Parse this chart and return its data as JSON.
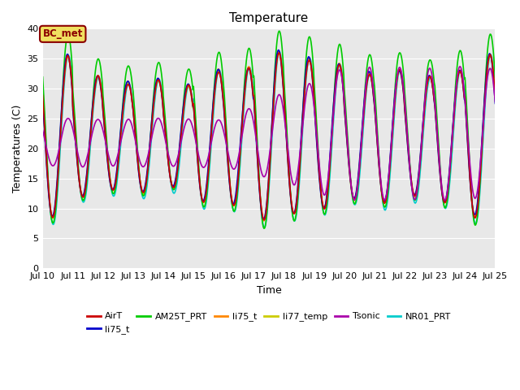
{
  "title": "Temperature",
  "xlabel": "Time",
  "ylabel": "Temperatures (C)",
  "ylim": [
    0,
    40
  ],
  "yticks": [
    0,
    5,
    10,
    15,
    20,
    25,
    30,
    35,
    40
  ],
  "xtick_labels": [
    "Jul 10",
    "Jul 11",
    "Jul 12",
    "Jul 13",
    "Jul 14",
    "Jul 15",
    "Jul 16",
    "Jul 17",
    "Jul 18",
    "Jul 19",
    "Jul 20",
    "Jul 21",
    "Jul 22",
    "Jul 23",
    "Jul 24",
    "Jul 25"
  ],
  "series_colors": {
    "AirT": "#cc0000",
    "li75_t": "#0000cc",
    "AM25T_PRT": "#00cc00",
    "li75_t2": "#ff8800",
    "li77_temp": "#cccc00",
    "Tsonic": "#aa00aa",
    "NR01_PRT": "#00cccc"
  },
  "legend_labels": [
    "AirT",
    "li75_t",
    "AM25T_PRT",
    "li75_t",
    "li77_temp",
    "Tsonic",
    "NR01_PRT"
  ],
  "legend_colors": [
    "#cc0000",
    "#0000cc",
    "#00cc00",
    "#ff8800",
    "#cccc00",
    "#aa00aa",
    "#00cccc"
  ],
  "annotation_text": "BC_met",
  "annotation_color": "#8b0000",
  "annotation_bg": "#f0e060",
  "background_color": "#e8e8e8",
  "figure_color": "#ffffff",
  "grid_color": "#ffffff",
  "title_fontsize": 11,
  "axis_label_fontsize": 9,
  "tick_fontsize": 8
}
